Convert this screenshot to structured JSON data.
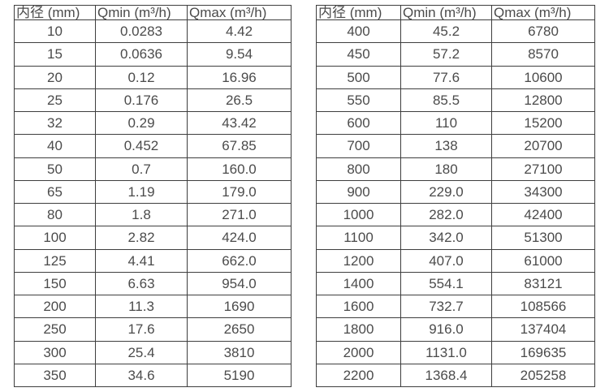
{
  "style": {
    "background": "#ffffff",
    "border_color": "#3e3e3e",
    "text_color": "#4b4b4b"
  },
  "tables": [
    {
      "name": "flow-spec-table-small-diameters",
      "headers": [
        "内径 (mm)",
        "Qmin (m³/h)",
        "Qmax (m³/h)"
      ],
      "rows": [
        [
          "10",
          "0.0283",
          "4.42"
        ],
        [
          "15",
          "0.0636",
          "9.54"
        ],
        [
          "20",
          "0.12",
          "16.96"
        ],
        [
          "25",
          "0.176",
          "26.5"
        ],
        [
          "32",
          "0.29",
          "43.42"
        ],
        [
          "40",
          "0.452",
          "67.85"
        ],
        [
          "50",
          "0.7",
          "160.0"
        ],
        [
          "65",
          "1.19",
          "179.0"
        ],
        [
          "80",
          "1.8",
          "271.0"
        ],
        [
          "100",
          "2.82",
          "424.0"
        ],
        [
          "125",
          "4.41",
          "662.0"
        ],
        [
          "150",
          "6.63",
          "954.0"
        ],
        [
          "200",
          "11.3",
          "1690"
        ],
        [
          "250",
          "17.6",
          "2650"
        ],
        [
          "300",
          "25.4",
          "3810"
        ],
        [
          "350",
          "34.6",
          "5190"
        ]
      ]
    },
    {
      "name": "flow-spec-table-large-diameters",
      "headers": [
        "内径 (mm)",
        "Qmin (m³/h)",
        "Qmax (m³/h)"
      ],
      "rows": [
        [
          "400",
          "45.2",
          "6780"
        ],
        [
          "450",
          "57.2",
          "8570"
        ],
        [
          "500",
          "77.6",
          "10600"
        ],
        [
          "550",
          "85.5",
          "12800"
        ],
        [
          "600",
          "110",
          "15200"
        ],
        [
          "700",
          "138",
          "20700"
        ],
        [
          "800",
          "180",
          "27100"
        ],
        [
          "900",
          "229.0",
          "34300"
        ],
        [
          "1000",
          "282.0",
          "42400"
        ],
        [
          "1100",
          "342.0",
          "51300"
        ],
        [
          "1200",
          "407.0",
          "61000"
        ],
        [
          "1400",
          "554.1",
          "83121"
        ],
        [
          "1600",
          "732.7",
          "108566"
        ],
        [
          "1800",
          "916.0",
          "137404"
        ],
        [
          "2000",
          "1131.0",
          "169635"
        ],
        [
          "2200",
          "1368.4",
          "205258"
        ]
      ]
    }
  ]
}
